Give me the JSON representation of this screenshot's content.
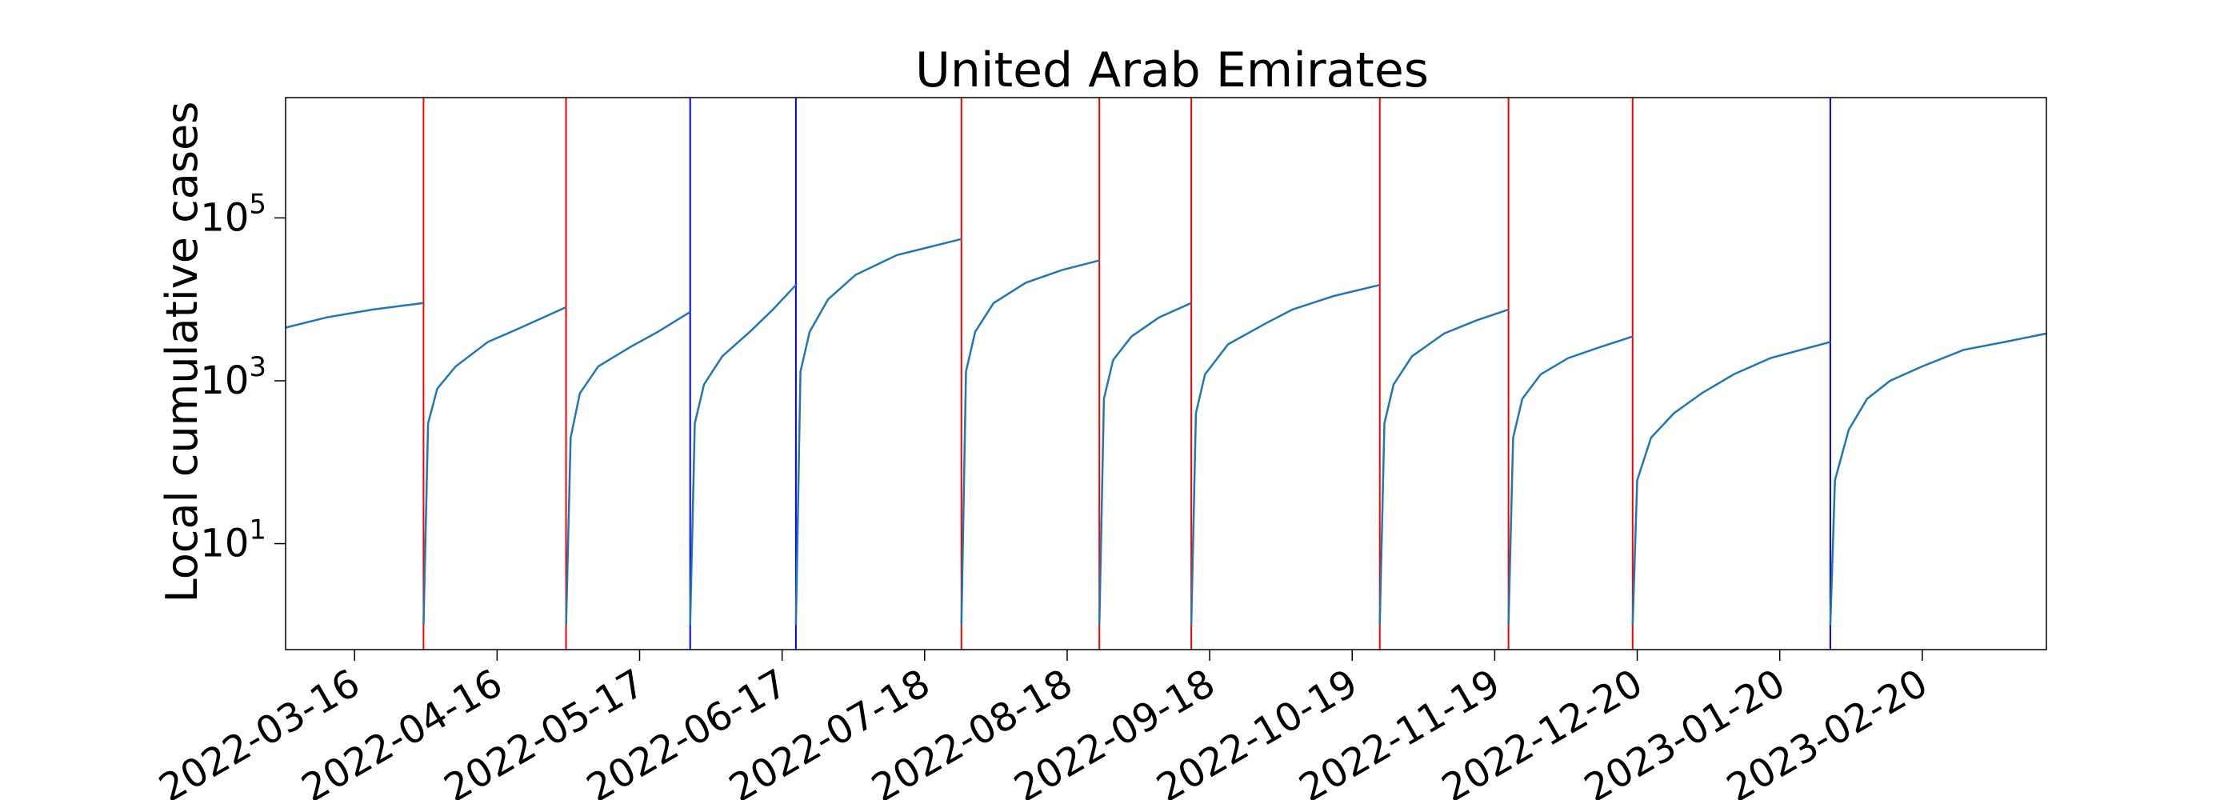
{
  "chart_data": {
    "type": "line",
    "title": "United Arab Emirates",
    "xlabel": "",
    "ylabel": "Local cumulative cases",
    "yscale": "log",
    "ylim": [
      0.5,
      3000000
    ],
    "xlim": [
      "2022-03-01",
      "2023-03-19"
    ],
    "grid": false,
    "x_ticks": [
      "2022-03-16",
      "2022-04-16",
      "2022-05-17",
      "2022-06-17",
      "2022-07-18",
      "2022-08-18",
      "2022-09-18",
      "2022-10-19",
      "2022-11-19",
      "2022-12-20",
      "2023-01-20",
      "2023-02-20"
    ],
    "y_ticks": [
      {
        "value": 10,
        "base": "10",
        "exp": "1"
      },
      {
        "value": 1000,
        "base": "10",
        "exp": "3"
      },
      {
        "value": 100000,
        "base": "10",
        "exp": "5"
      }
    ],
    "colors": {
      "series": "#1f77b4",
      "red_line": "#ff0000",
      "blue_line": "#0000ff"
    },
    "vertical_lines": [
      {
        "date": "2022-03-31",
        "color": "red"
      },
      {
        "date": "2022-05-01",
        "color": "red"
      },
      {
        "date": "2022-05-28",
        "color": "blue"
      },
      {
        "date": "2022-06-20",
        "color": "blue"
      },
      {
        "date": "2022-07-26",
        "color": "red"
      },
      {
        "date": "2022-08-25",
        "color": "red"
      },
      {
        "date": "2022-09-14",
        "color": "red"
      },
      {
        "date": "2022-10-25",
        "color": "red"
      },
      {
        "date": "2022-11-22",
        "color": "red"
      },
      {
        "date": "2022-12-19",
        "color": "red"
      },
      {
        "date": "2023-01-31",
        "color": "blue"
      }
    ],
    "series": [
      {
        "segments": [
          [
            [
              "2022-03-01",
              4500
            ],
            [
              "2022-03-10",
              6000
            ],
            [
              "2022-03-20",
              7500
            ],
            [
              "2022-03-31",
              9000
            ]
          ],
          [
            [
              "2022-03-31",
              1
            ],
            [
              "2022-04-01",
              300
            ],
            [
              "2022-04-03",
              800
            ],
            [
              "2022-04-07",
              1500
            ],
            [
              "2022-04-14",
              3000
            ],
            [
              "2022-04-20",
              4200
            ],
            [
              "2022-05-01",
              8000
            ]
          ],
          [
            [
              "2022-05-01",
              1
            ],
            [
              "2022-05-02",
              200
            ],
            [
              "2022-05-04",
              700
            ],
            [
              "2022-05-08",
              1500
            ],
            [
              "2022-05-15",
              2600
            ],
            [
              "2022-05-21",
              4000
            ],
            [
              "2022-05-28",
              7000
            ]
          ],
          [
            [
              "2022-05-28",
              1
            ],
            [
              "2022-05-29",
              300
            ],
            [
              "2022-05-31",
              900
            ],
            [
              "2022-06-04",
              2000
            ],
            [
              "2022-06-10",
              4000
            ],
            [
              "2022-06-15",
              7500
            ],
            [
              "2022-06-20",
              15000
            ]
          ],
          [
            [
              "2022-06-20",
              1
            ],
            [
              "2022-06-21",
              1300
            ],
            [
              "2022-06-23",
              4000
            ],
            [
              "2022-06-27",
              10000
            ],
            [
              "2022-07-03",
              20000
            ],
            [
              "2022-07-12",
              35000
            ],
            [
              "2022-07-26",
              55000
            ]
          ],
          [
            [
              "2022-07-26",
              1
            ],
            [
              "2022-07-27",
              1300
            ],
            [
              "2022-07-29",
              4000
            ],
            [
              "2022-08-02",
              9000
            ],
            [
              "2022-08-09",
              16000
            ],
            [
              "2022-08-17",
              23000
            ],
            [
              "2022-08-25",
              30000
            ]
          ],
          [
            [
              "2022-08-25",
              1
            ],
            [
              "2022-08-26",
              600
            ],
            [
              "2022-08-28",
              1800
            ],
            [
              "2022-09-01",
              3500
            ],
            [
              "2022-09-07",
              6000
            ],
            [
              "2022-09-14",
              9000
            ]
          ],
          [
            [
              "2022-09-14",
              1
            ],
            [
              "2022-09-15",
              400
            ],
            [
              "2022-09-17",
              1200
            ],
            [
              "2022-09-22",
              2800
            ],
            [
              "2022-09-30",
              5000
            ],
            [
              "2022-10-06",
              7500
            ],
            [
              "2022-10-15",
              11000
            ],
            [
              "2022-10-25",
              15000
            ]
          ],
          [
            [
              "2022-10-25",
              1
            ],
            [
              "2022-10-26",
              300
            ],
            [
              "2022-10-28",
              900
            ],
            [
              "2022-11-01",
              2000
            ],
            [
              "2022-11-08",
              3800
            ],
            [
              "2022-11-15",
              5500
            ],
            [
              "2022-11-22",
              7500
            ]
          ],
          [
            [
              "2022-11-22",
              1
            ],
            [
              "2022-11-23",
              200
            ],
            [
              "2022-11-25",
              600
            ],
            [
              "2022-11-29",
              1200
            ],
            [
              "2022-12-05",
              1900
            ],
            [
              "2022-12-12",
              2600
            ],
            [
              "2022-12-19",
              3500
            ]
          ],
          [
            [
              "2022-12-19",
              1
            ],
            [
              "2022-12-20",
              60
            ],
            [
              "2022-12-23",
              200
            ],
            [
              "2022-12-28",
              400
            ],
            [
              "2023-01-03",
              700
            ],
            [
              "2023-01-10",
              1200
            ],
            [
              "2023-01-18",
              1900
            ],
            [
              "2023-01-31",
              3000
            ]
          ],
          [
            [
              "2023-01-31",
              1
            ],
            [
              "2023-02-01",
              60
            ],
            [
              "2023-02-04",
              250
            ],
            [
              "2023-02-08",
              600
            ],
            [
              "2023-02-13",
              1000
            ],
            [
              "2023-02-20",
              1500
            ],
            [
              "2023-03-01",
              2400
            ],
            [
              "2023-03-10",
              3000
            ],
            [
              "2023-03-19",
              3800
            ]
          ]
        ]
      }
    ]
  }
}
